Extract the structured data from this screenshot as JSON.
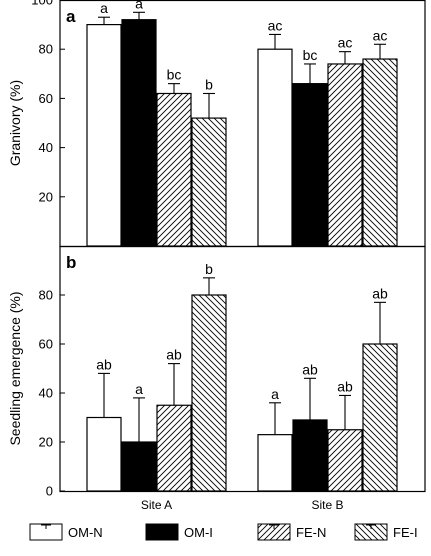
{
  "colors": {
    "axis": "#000000",
    "bar_white": "#ffffff",
    "bar_black": "#000000"
  },
  "chart_data": [
    {
      "type": "bar",
      "panel_label": "a",
      "ylabel": "Granivory (%)",
      "ylim": [
        0,
        100
      ],
      "yticks": [
        20,
        40,
        60,
        80,
        100
      ],
      "categories": [
        "Site A",
        "Site B"
      ],
      "series": [
        {
          "name": "OM-N",
          "fill": "white",
          "values": [
            90,
            80
          ],
          "errors": [
            3,
            6
          ],
          "letters": [
            "a",
            "ac"
          ]
        },
        {
          "name": "OM-I",
          "fill": "black",
          "values": [
            92,
            66
          ],
          "errors": [
            3,
            8
          ],
          "letters": [
            "a",
            "bc"
          ]
        },
        {
          "name": "FE-N",
          "fill": "hatch-forward",
          "values": [
            62,
            74
          ],
          "errors": [
            4,
            5
          ],
          "letters": [
            "bc",
            "ac"
          ]
        },
        {
          "name": "FE-I",
          "fill": "hatch-back",
          "values": [
            52,
            76
          ],
          "errors": [
            10,
            6
          ],
          "letters": [
            "b",
            "ac"
          ]
        }
      ]
    },
    {
      "type": "bar",
      "panel_label": "b",
      "ylabel": "Seedling emergence (%)",
      "ylim": [
        0,
        100
      ],
      "yticks": [
        0,
        20,
        40,
        60,
        80
      ],
      "categories": [
        "Site A",
        "Site B"
      ],
      "series": [
        {
          "name": "OM-N",
          "fill": "white",
          "values": [
            30,
            23
          ],
          "errors": [
            18,
            13
          ],
          "letters": [
            "ab",
            "a"
          ]
        },
        {
          "name": "OM-I",
          "fill": "black",
          "values": [
            20,
            29
          ],
          "errors": [
            18,
            17
          ],
          "letters": [
            "a",
            "ab"
          ]
        },
        {
          "name": "FE-N",
          "fill": "hatch-forward",
          "values": [
            35,
            25
          ],
          "errors": [
            17,
            14
          ],
          "letters": [
            "ab",
            "ab"
          ]
        },
        {
          "name": "FE-I",
          "fill": "hatch-back",
          "values": [
            80,
            60
          ],
          "errors": [
            7,
            17
          ],
          "letters": [
            "b",
            "ab"
          ]
        }
      ]
    }
  ],
  "legend": [
    {
      "name": "OM-N",
      "fill": "white"
    },
    {
      "name": "OM-I",
      "fill": "black"
    },
    {
      "name": "FE-N",
      "fill": "hatch-forward"
    },
    {
      "name": "FE-I",
      "fill": "hatch-back"
    }
  ]
}
